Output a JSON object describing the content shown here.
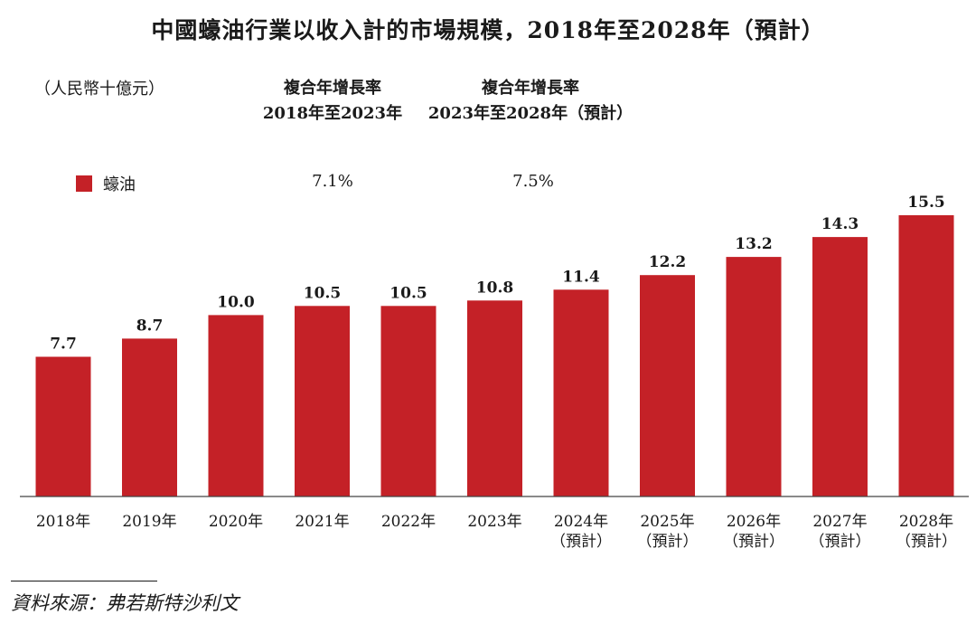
{
  "title": "中國蠔油行業以收入計的市場規模，2018年至2028年（預計）",
  "unit": "（人民幣十億元）",
  "cagr": {
    "period1": {
      "line1": "複合年增長率",
      "line2": "2018年至2023年",
      "value": "7.1%"
    },
    "period2": {
      "line1": "複合年增長率",
      "line2": "2023年至2028年（預計）",
      "value": "7.5%"
    }
  },
  "legend": {
    "label": "蠔油"
  },
  "bar_color": "#c42127",
  "source": "資料來源：弗若斯特沙利文",
  "chart_data": {
    "type": "bar",
    "categories": [
      "2018年",
      "2019年",
      "2020年",
      "2021年",
      "2022年",
      "2023年",
      "2024年",
      "2025年",
      "2026年",
      "2027年",
      "2028年"
    ],
    "category_sublabels": [
      "",
      "",
      "",
      "",
      "",
      "",
      "（預計）",
      "（預計）",
      "（預計）",
      "（預計）",
      "（預計）"
    ],
    "series": [
      {
        "name": "蠔油",
        "values": [
          7.7,
          8.7,
          10.0,
          10.5,
          10.5,
          10.8,
          11.4,
          12.2,
          13.2,
          14.3,
          15.5
        ]
      }
    ],
    "value_labels": [
      "7.7",
      "8.7",
      "10.0",
      "10.5",
      "10.5",
      "10.8",
      "11.4",
      "12.2",
      "13.2",
      "14.3",
      "15.5"
    ],
    "ylim": [
      0,
      15.5
    ],
    "grid": false,
    "legend_position": "top-left"
  }
}
